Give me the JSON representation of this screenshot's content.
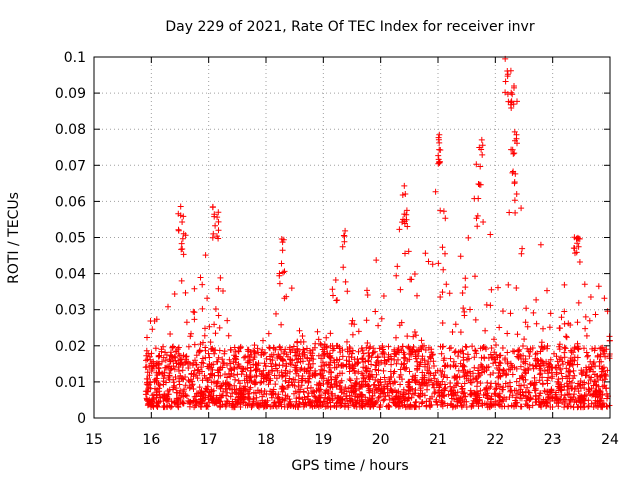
{
  "chart_data": {
    "type": "scatter",
    "title": "Day 229 of 2021, Rate Of TEC Index for receiver invr",
    "xlabel": "GPS time / hours",
    "ylabel": "ROTI / TECUs",
    "xlim": [
      15,
      24
    ],
    "ylim": [
      0,
      0.1
    ],
    "xticks": [
      15,
      16,
      17,
      18,
      19,
      20,
      21,
      22,
      23,
      24
    ],
    "yticks": [
      0,
      0.01,
      0.02,
      0.03,
      0.04,
      0.05,
      0.06,
      0.07,
      0.08,
      0.09,
      0.1
    ],
    "xtick_labels": [
      "15",
      "16",
      "17",
      "18",
      "19",
      "20",
      "21",
      "22",
      "23",
      "24"
    ],
    "ytick_labels": [
      "0",
      "0.01",
      "0.02",
      "0.03",
      "0.04",
      "0.05",
      "0.06",
      "0.07",
      "0.08",
      "0.09",
      "0.1"
    ],
    "grid": true,
    "marker": "+",
    "color": "#ff0000",
    "series": [
      {
        "name": "ROTI",
        "x_range": [
          15.9,
          24.0
        ],
        "baseline_range": [
          0.003,
          0.02
        ],
        "envelope": [
          [
            16.0,
            0.025
          ],
          [
            16.2,
            0.038
          ],
          [
            16.4,
            0.033
          ],
          [
            16.5,
            0.052
          ],
          [
            16.55,
            0.058
          ],
          [
            16.8,
            0.04
          ],
          [
            16.9,
            0.048
          ],
          [
            17.1,
            0.059
          ],
          [
            17.3,
            0.032
          ],
          [
            17.6,
            0.02
          ],
          [
            18.0,
            0.022
          ],
          [
            18.15,
            0.03
          ],
          [
            18.3,
            0.049
          ],
          [
            18.6,
            0.027
          ],
          [
            19.0,
            0.025
          ],
          [
            19.3,
            0.05
          ],
          [
            19.5,
            0.032
          ],
          [
            19.9,
            0.045
          ],
          [
            20.2,
            0.033
          ],
          [
            20.4,
            0.065
          ],
          [
            20.7,
            0.034
          ],
          [
            21.0,
            0.08
          ],
          [
            21.2,
            0.043
          ],
          [
            21.4,
            0.049
          ],
          [
            21.6,
            0.065
          ],
          [
            21.75,
            0.078
          ],
          [
            21.9,
            0.05
          ],
          [
            22.1,
            0.065
          ],
          [
            22.25,
            0.099
          ],
          [
            22.35,
            0.088
          ],
          [
            22.5,
            0.045
          ],
          [
            22.8,
            0.05
          ],
          [
            23.0,
            0.033
          ],
          [
            23.2,
            0.038
          ],
          [
            23.4,
            0.052
          ],
          [
            23.6,
            0.034
          ],
          [
            23.8,
            0.04
          ],
          [
            24.0,
            0.03
          ]
        ],
        "peaks": [
          [
            16.5,
            0.059
          ],
          [
            16.55,
            0.057
          ],
          [
            17.1,
            0.06
          ],
          [
            17.15,
            0.059
          ],
          [
            18.3,
            0.05
          ],
          [
            19.35,
            0.053
          ],
          [
            20.4,
            0.066
          ],
          [
            20.45,
            0.064
          ],
          [
            21.0,
            0.08
          ],
          [
            21.02,
            0.079
          ],
          [
            21.7,
            0.065
          ],
          [
            21.75,
            0.078
          ],
          [
            22.2,
            0.1
          ],
          [
            22.25,
            0.097
          ],
          [
            22.3,
            0.093
          ],
          [
            22.35,
            0.088
          ],
          [
            22.3,
            0.079
          ],
          [
            22.35,
            0.068
          ],
          [
            23.4,
            0.052
          ],
          [
            23.45,
            0.05
          ]
        ]
      }
    ]
  }
}
